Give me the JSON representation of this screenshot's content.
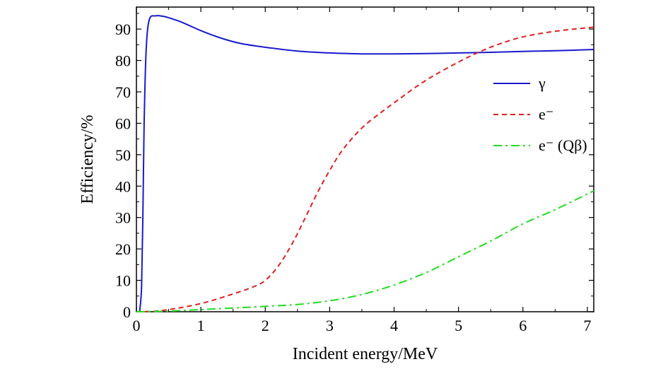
{
  "chart_data": {
    "type": "line",
    "title": "",
    "xlabel": "Incident energy/MeV",
    "ylabel": "Efficiency/%",
    "xlim": [
      0,
      7.1
    ],
    "ylim": [
      0,
      97
    ],
    "xticks": [
      0,
      1,
      2,
      3,
      4,
      5,
      6,
      7
    ],
    "yticks": [
      0,
      10,
      20,
      30,
      40,
      50,
      60,
      70,
      80,
      90
    ],
    "xtick_labels": [
      "0",
      "1",
      "2",
      "3",
      "4",
      "5",
      "6",
      "7"
    ],
    "ytick_labels": [
      "0",
      "10",
      "20",
      "30",
      "40",
      "50",
      "60",
      "70",
      "80",
      "90"
    ],
    "grid": false,
    "legend_position": "right",
    "series": [
      {
        "name": "γ",
        "color": "#1a1acc",
        "style": "solid",
        "x": [
          0.05,
          0.08,
          0.1,
          0.12,
          0.15,
          0.2,
          0.3,
          0.4,
          0.5,
          0.7,
          1.0,
          1.3,
          1.6,
          2.0,
          2.5,
          3.0,
          3.5,
          4.0,
          4.5,
          5.0,
          5.5,
          6.0,
          6.5,
          7.1
        ],
        "y": [
          0,
          8,
          30,
          60,
          83,
          93,
          94.2,
          94.1,
          93.6,
          92.2,
          89.5,
          87.2,
          85.5,
          84.2,
          83.0,
          82.4,
          82.1,
          82.1,
          82.2,
          82.4,
          82.6,
          82.9,
          83.1,
          83.5
        ]
      },
      {
        "name": "e⁻",
        "color": "#e02020",
        "style": "dashed",
        "x": [
          0.0,
          0.3,
          0.6,
          1.0,
          1.4,
          1.8,
          2.0,
          2.2,
          2.4,
          2.6,
          2.8,
          3.0,
          3.2,
          3.5,
          3.8,
          4.0,
          4.3,
          4.6,
          5.0,
          5.3,
          5.6,
          6.0,
          6.5,
          7.1
        ],
        "y": [
          0,
          0.2,
          1.0,
          2.6,
          5.0,
          7.8,
          10,
          14.5,
          21,
          29,
          37.5,
          45,
          51.5,
          58.5,
          63.5,
          66.5,
          71,
          75,
          79.5,
          82.5,
          85,
          87.5,
          89.3,
          90.6
        ]
      },
      {
        "name": "e⁻ (Qβ)",
        "color": "#22dd22",
        "style": "dashdot",
        "x": [
          0.0,
          0.5,
          1.0,
          1.5,
          2.0,
          2.5,
          3.0,
          3.5,
          4.0,
          4.5,
          5.0,
          5.5,
          6.0,
          6.5,
          7.1
        ],
        "y": [
          0,
          0.2,
          0.7,
          1.2,
          1.7,
          2.3,
          3.5,
          5.5,
          8.5,
          12.5,
          17.5,
          22.5,
          28.0,
          32.5,
          38.5
        ]
      }
    ]
  }
}
